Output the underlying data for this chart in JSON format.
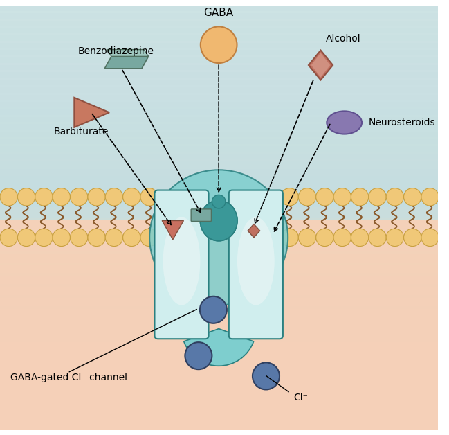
{
  "figsize": [
    6.49,
    6.28
  ],
  "dpi": 100,
  "bg_top_color": "#b8d8dc",
  "bg_bottom_color": "#f5d5c0",
  "membrane_bead_color": "#f0c878",
  "membrane_tail_color": "#8b5a2b",
  "channel_outer_color": "#7ecece",
  "channel_inner_color": "#d0eeee",
  "channel_pore_color": "#4aa0a0",
  "cl_ion_color": "#5878a8",
  "gaba_color": "#f0b870",
  "barbiturate_color": "#c87860",
  "benzodiazepine_color": "#78a8a0",
  "alcohol_color": "#c07060",
  "neurosteroid_color": "#8878b0",
  "labels": {
    "GABA": "GABA",
    "Benzodiazepine": "Benzodiazepine",
    "Barbiturate": "Barbiturate",
    "Alcohol": "Alcohol",
    "Neurosteroids": "Neurosteroids",
    "channel": "GABA-gated Cl⁻ channel",
    "cl": "Cl⁻"
  }
}
